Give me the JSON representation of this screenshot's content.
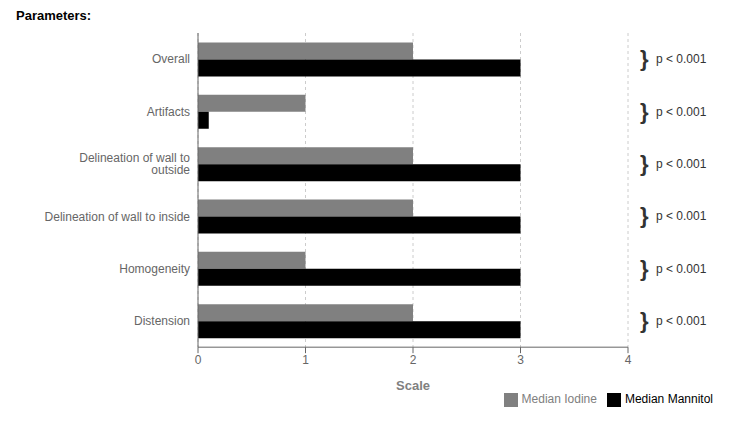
{
  "chart_data": {
    "type": "bar",
    "orientation": "horizontal",
    "categories": [
      "Overall",
      "Artifacts",
      "Delineation of wall to outside",
      "Delineation of wall to inside",
      "Homogeneity",
      "Distension"
    ],
    "series": [
      {
        "name": "Median Iodine",
        "color": "#808080",
        "values": [
          2.0,
          1.0,
          2.0,
          2.0,
          1.0,
          2.0
        ]
      },
      {
        "name": "Median Mannitol",
        "color": "#000000",
        "values": [
          3.0,
          0.1,
          3.0,
          3.0,
          3.0,
          3.0
        ]
      }
    ],
    "xlabel": "Scale",
    "ylabel": "Parameters:",
    "xlim": [
      0,
      4
    ],
    "xticks": [
      0,
      1,
      2,
      3,
      4
    ],
    "grid": true,
    "legend": "lower right",
    "annotations": [
      {
        "category": "Overall",
        "bracket": "}",
        "text": "p < 0.001"
      },
      {
        "category": "Artifacts",
        "bracket": "}",
        "text": "p < 0.001"
      },
      {
        "category": "Delineation of wall to outside",
        "bracket": "}",
        "text": "p < 0.001"
      },
      {
        "category": "Delineation of wall to inside",
        "bracket": "}",
        "text": "p < 0.001"
      },
      {
        "category": "Homogeneity",
        "bracket": "}",
        "text": "p < 0.001"
      },
      {
        "category": "Distension",
        "bracket": "}",
        "text": "p < 0.001"
      }
    ]
  }
}
